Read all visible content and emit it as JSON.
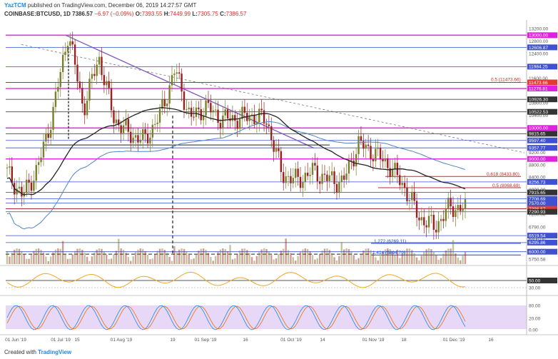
{
  "header": {
    "publisher": "YazTCM",
    "published_text": "published on TradingView.com, December 06, 2019 14:27:57 GMT",
    "symbol": "COINBASE:BTCUSD, 1D",
    "last": "7386.57",
    "change": "−6.97 (−0.09%)",
    "o_label": "O:",
    "o": "7393.55",
    "h_label": "H:",
    "h": "7449.99",
    "l_label": "L:",
    "l": "7305.75",
    "c_label": "C:",
    "c": "7386.57"
  },
  "footer": {
    "created_with": "Created with",
    "brand": "TradingView"
  },
  "colors": {
    "magenta": "#e020e0",
    "red": "#c62828",
    "purple": "#7e57c2",
    "blue": "#1e40d0",
    "ma200": "#4f86c6",
    "ma100": "#222222",
    "rsi": "#f5a623",
    "stoch_band": "#e8d8f8",
    "candle_up": "#7a7f2a",
    "candle_down": "#9e1f1f"
  },
  "chart_data": [
    {
      "type": "candlestick",
      "title": "COINBASE:BTCUSD, 1D",
      "ylim": [
        5600,
        13400
      ],
      "x_tick_labels": [
        "01 Jun '19",
        "01 Jul '19",
        "15",
        "01 Aug '19",
        "19",
        "01 Sep '19",
        "16",
        "01 Oct '19",
        "14",
        "01 Nov '19",
        "18",
        "01 Dec '19",
        "16"
      ],
      "y_axis_labels": [
        "13200.00",
        "12800.00",
        "12400.00",
        "12000.00",
        "11600.00",
        "10800.00",
        "10400.00",
        "10000.00",
        "9600.00",
        "9200.00",
        "8800.00",
        "8400.00",
        "8000.00",
        "7600.00",
        "7200.00",
        "6790.00",
        "6400.00",
        "6000.00",
        "5750.58"
      ],
      "level_labels": [
        {
          "text": "13000.00",
          "type": "magenta",
          "value": 13000
        },
        {
          "text": "12606.87",
          "type": "blue",
          "value": 12606.87
        },
        {
          "text": "11984.25",
          "type": "blue",
          "value": 11984.25
        },
        {
          "text": "11473.66",
          "type": "red",
          "value": 11473.66
        },
        {
          "text": "11276.81",
          "type": "magenta",
          "value": 11276.81
        },
        {
          "text": "10926.30",
          "type": "black",
          "value": 10926.3
        },
        {
          "text": "10522.53",
          "type": "black",
          "value": 10522.53
        },
        {
          "text": "10000.00",
          "type": "magenta",
          "value": 10000
        },
        {
          "text": "9815.65",
          "type": "black",
          "value": 9815.65
        },
        {
          "text": "9597.40",
          "type": "blue",
          "value": 9597.4
        },
        {
          "text": "9357.77",
          "type": "blue",
          "value": 9357.77
        },
        {
          "text": "9000.00",
          "type": "magenta",
          "value": 9000
        },
        {
          "text": "8256.73",
          "type": "blue",
          "value": 8256.73
        },
        {
          "text": "7915.65",
          "type": "black",
          "value": 7915.65
        },
        {
          "text": "7708.69",
          "type": "blue",
          "value": 7708.69
        },
        {
          "text": "7570.00",
          "type": "blue",
          "value": 7570
        },
        {
          "text": "7393.98",
          "type": "blue",
          "value": 7393.98
        },
        {
          "text": "7386.57",
          "type": "red",
          "value": 7386.57
        },
        {
          "text": "7290.93",
          "type": "black",
          "value": 7290.93
        },
        {
          "text": "6519.54",
          "type": "blue",
          "value": 6519.54
        },
        {
          "text": "6295.86",
          "type": "blue",
          "value": 6295.86
        },
        {
          "text": "6000.00",
          "type": "blue",
          "value": 6000
        }
      ],
      "annotations": [
        {
          "text": "0.5 (11473.66)",
          "color": "red"
        },
        {
          "text": "0.618 (8433.80)",
          "color": "red"
        },
        {
          "text": "0.5 (8068.69)",
          "color": "red"
        },
        {
          "text": "1.272 (6269.11)",
          "color": "blue"
        },
        {
          "text": "1.414 (5894.79)",
          "color": "blue"
        }
      ],
      "series": [
        {
          "name": "BTCUSD",
          "points": [
            [
              "01 Jun '19",
              8560
            ],
            [
              "08 Jun",
              7800
            ],
            [
              "15 Jun",
              8700
            ],
            [
              "22 Jun",
              10500
            ],
            [
              "26 Jun",
              13100
            ],
            [
              "01 Jul '19",
              10600
            ],
            [
              "08 Jul",
              12300
            ],
            [
              "15 Jul",
              10300
            ],
            [
              "22 Jul",
              9800
            ],
            [
              "29 Jul",
              9600
            ],
            [
              "01 Aug '19",
              10400
            ],
            [
              "08 Aug",
              11900
            ],
            [
              "15 Aug",
              10300
            ],
            [
              "19 Aug",
              10700
            ],
            [
              "26 Aug",
              10300
            ],
            [
              "01 Sep '19",
              10300
            ],
            [
              "09 Sep",
              10400
            ],
            [
              "16 Sep",
              10250
            ],
            [
              "23 Sep",
              8500
            ],
            [
              "01 Oct '19",
              8300
            ],
            [
              "08 Oct",
              8600
            ],
            [
              "14 Oct",
              8350
            ],
            [
              "21 Oct",
              8250
            ],
            [
              "25 Oct",
              9500
            ],
            [
              "01 Nov '19",
              9200
            ],
            [
              "08 Nov",
              8800
            ],
            [
              "18 Nov",
              8100
            ],
            [
              "22 Nov",
              7100
            ],
            [
              "25 Nov",
              6800
            ],
            [
              "01 Dec '19",
              7450
            ],
            [
              "06 Dec",
              7386.57
            ]
          ]
        }
      ]
    },
    {
      "type": "line",
      "title": "RSI",
      "y_axis_labels": [
        "50.00",
        "30.00"
      ]
    },
    {
      "type": "line",
      "title": "Stochastic RSI",
      "y_axis_labels": [
        "80.00",
        "20.00",
        "0.00"
      ]
    }
  ]
}
